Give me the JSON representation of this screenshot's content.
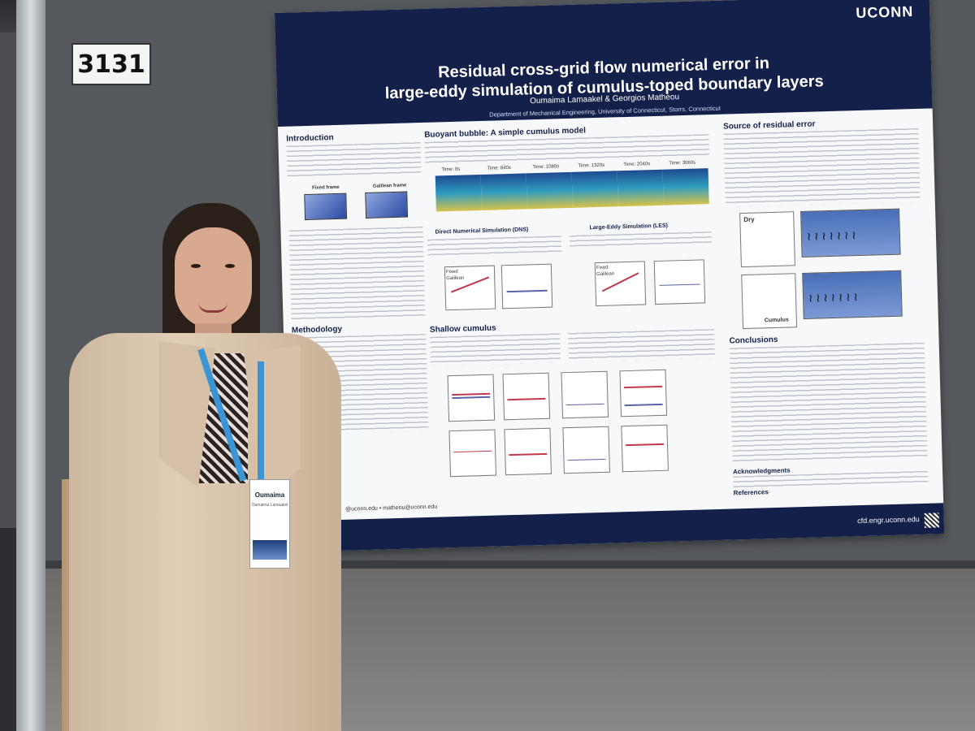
{
  "booth": {
    "number": "3131"
  },
  "poster": {
    "brand": "UCONN",
    "title_line1": "Residual cross-grid flow numerical error in",
    "title_line2": "large-eddy simulation of cumulus-toped boundary layers",
    "authors": "Oumaima Lamaakel & Georgios Matheou",
    "department": "Department of Mechanical Engineering, University of Connecticut, Storrs, Connecticut",
    "sections": {
      "introduction": "Introduction",
      "methodology": "Methodology",
      "buoyant_bubble": "Buoyant bubble: A simple cumulus model",
      "dns": "Direct Numerical Simulation (DNS)",
      "les": "Large-Eddy Simulation (LES)",
      "shallow_cumulus": "Shallow cumulus",
      "source_error": "Source of residual error",
      "conclusions": "Conclusions",
      "acknowledgments": "Acknowledgments",
      "references": "References"
    },
    "frames": {
      "fixed": "Fixed frame",
      "galilean": "Galilean frame"
    },
    "times": [
      "Time: 0s",
      "Time: 840s",
      "Time: 1080s",
      "Time: 1320s",
      "Time: 2040s",
      "Time: 3060s"
    ],
    "legend": {
      "fixed": "Fixed",
      "galilean": "Galilean"
    },
    "profile_labels": {
      "dry": "Dry",
      "cumulus": "Cumulus"
    },
    "emails": "@uconn.edu • matheou@uconn.edu",
    "website": "cfd.engr.uconn.edu"
  },
  "badge": {
    "name": "Oumaima",
    "surname": "Oumaima Lamaakel"
  }
}
